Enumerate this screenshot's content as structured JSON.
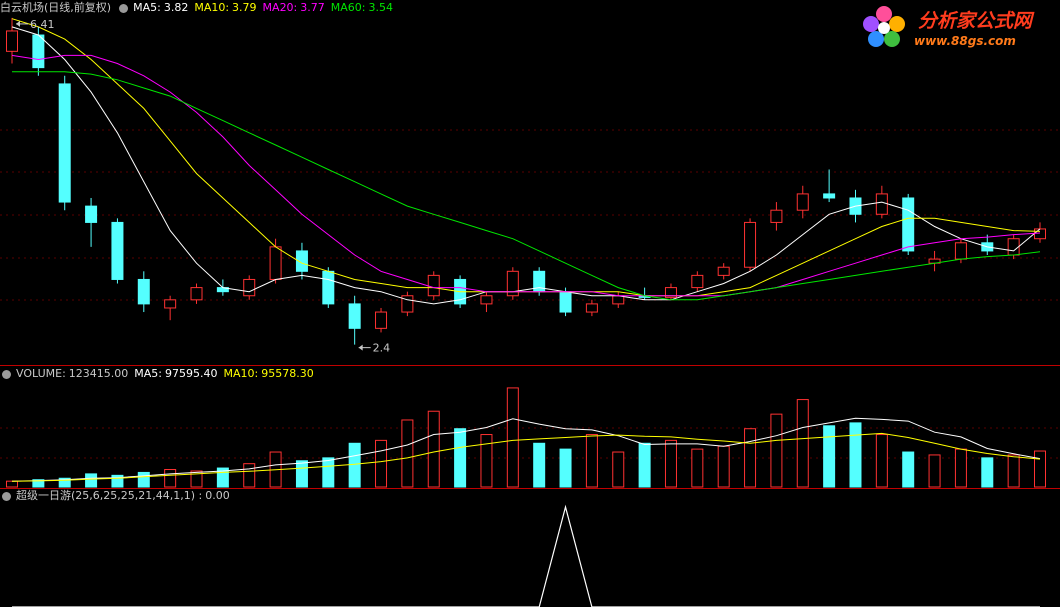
{
  "chart_data": [
    {
      "type": "candlestick",
      "title": "白云机场(日线,前复权)",
      "open": [
        6.0,
        6.2,
        5.6,
        4.1,
        3.9,
        3.2,
        2.85,
        2.95,
        3.1,
        3.0,
        3.2,
        3.55,
        3.3,
        2.9,
        2.6,
        2.8,
        3.0,
        3.2,
        2.9,
        3.0,
        3.3,
        3.05,
        2.8,
        2.9,
        3.0,
        2.98,
        3.1,
        3.25,
        3.35,
        3.9,
        4.05,
        4.25,
        4.2,
        4.0,
        4.2,
        3.4,
        3.45,
        3.65,
        3.5,
        3.7
      ],
      "high": [
        6.41,
        6.3,
        5.7,
        4.2,
        3.95,
        3.3,
        3.0,
        3.15,
        3.2,
        3.25,
        3.7,
        3.65,
        3.35,
        3.0,
        2.85,
        3.05,
        3.3,
        3.25,
        3.05,
        3.35,
        3.35,
        3.1,
        2.95,
        3.05,
        3.1,
        3.15,
        3.3,
        3.4,
        3.95,
        4.15,
        4.35,
        4.55,
        4.3,
        4.35,
        4.25,
        3.55,
        3.7,
        3.75,
        3.75,
        3.9
      ],
      "low": [
        5.85,
        5.7,
        4.05,
        3.6,
        3.15,
        2.8,
        2.7,
        2.9,
        3.0,
        2.95,
        3.15,
        3.2,
        2.85,
        2.4,
        2.55,
        2.75,
        2.95,
        2.85,
        2.8,
        2.95,
        3.0,
        2.75,
        2.75,
        2.85,
        2.95,
        2.95,
        3.05,
        3.2,
        3.3,
        3.8,
        3.95,
        4.15,
        3.9,
        3.95,
        3.5,
        3.3,
        3.4,
        3.5,
        3.45,
        3.65
      ],
      "close": [
        6.25,
        5.8,
        4.15,
        3.9,
        3.2,
        2.9,
        2.95,
        3.1,
        3.05,
        3.2,
        3.6,
        3.3,
        2.9,
        2.6,
        2.8,
        3.0,
        3.25,
        2.9,
        3.0,
        3.3,
        3.05,
        2.8,
        2.9,
        3.0,
        2.98,
        3.1,
        3.25,
        3.35,
        3.9,
        4.05,
        4.25,
        4.2,
        4.0,
        4.25,
        3.55,
        3.45,
        3.65,
        3.55,
        3.7,
        3.82
      ],
      "up_color": "#ff3232",
      "down_color": "#54ffff",
      "ylim": [
        2.15,
        6.63
      ],
      "high_label": 6.41,
      "low_label": 2.4,
      "series": [
        {
          "name": "MA5:",
          "color": "#ffffff",
          "readout": 3.82,
          "values": [
            6.3,
            6.2,
            5.9,
            5.5,
            5.0,
            4.4,
            3.8,
            3.4,
            3.1,
            3.05,
            3.2,
            3.25,
            3.2,
            3.1,
            3.05,
            2.95,
            2.9,
            2.95,
            3.05,
            3.05,
            3.1,
            3.05,
            3.0,
            3.0,
            2.95,
            2.95,
            3.05,
            3.15,
            3.3,
            3.5,
            3.75,
            4.0,
            4.1,
            4.15,
            4.05,
            3.85,
            3.7,
            3.6,
            3.55,
            3.82
          ]
        },
        {
          "name": "MA10:",
          "color": "#ffff00",
          "readout": 3.79,
          "values": [
            6.4,
            6.3,
            6.15,
            5.9,
            5.6,
            5.3,
            4.9,
            4.5,
            4.2,
            3.9,
            3.6,
            3.4,
            3.3,
            3.2,
            3.15,
            3.1,
            3.1,
            3.05,
            3.05,
            3.05,
            3.05,
            3.05,
            3.05,
            3.05,
            3.0,
            3.0,
            3.0,
            3.05,
            3.1,
            3.25,
            3.4,
            3.55,
            3.7,
            3.85,
            3.95,
            3.95,
            3.9,
            3.85,
            3.8,
            3.79
          ]
        },
        {
          "name": "MA20:",
          "color": "#ff00ff",
          "readout": 3.77,
          "values": [
            5.95,
            5.9,
            5.95,
            5.95,
            5.85,
            5.7,
            5.5,
            5.25,
            4.95,
            4.6,
            4.3,
            4.0,
            3.75,
            3.5,
            3.3,
            3.2,
            3.1,
            3.1,
            3.05,
            3.05,
            3.05,
            3.05,
            3.05,
            3.0,
            3.0,
            3.0,
            3.0,
            3.0,
            3.05,
            3.1,
            3.2,
            3.3,
            3.4,
            3.5,
            3.6,
            3.65,
            3.7,
            3.72,
            3.75,
            3.77
          ]
        },
        {
          "name": "MA60:",
          "color": "#00e600",
          "readout": 3.54,
          "values": [
            5.75,
            5.75,
            5.75,
            5.72,
            5.65,
            5.55,
            5.45,
            5.3,
            5.15,
            5.0,
            4.85,
            4.7,
            4.55,
            4.4,
            4.25,
            4.1,
            4.0,
            3.9,
            3.8,
            3.7,
            3.55,
            3.4,
            3.25,
            3.1,
            3.0,
            2.95,
            2.95,
            3.0,
            3.05,
            3.1,
            3.15,
            3.2,
            3.25,
            3.3,
            3.35,
            3.4,
            3.45,
            3.48,
            3.5,
            3.54
          ]
        }
      ]
    },
    {
      "type": "bar",
      "title": "VOLUME:",
      "readout": {
        "value": 123415,
        "label": "123415.00"
      },
      "values": [
        20000,
        25000,
        30000,
        45000,
        40000,
        50000,
        60000,
        55000,
        65000,
        80000,
        120000,
        90000,
        100000,
        150000,
        160000,
        230000,
        260000,
        200000,
        180000,
        340000,
        150000,
        130000,
        180000,
        120000,
        150000,
        160000,
        130000,
        140000,
        200000,
        250000,
        300000,
        210000,
        220000,
        180000,
        120000,
        110000,
        130000,
        100000,
        110000,
        123415
      ],
      "ylim": [
        0,
        350000
      ],
      "series": [
        {
          "name": "MA5:",
          "color": "#ffffff",
          "readout": {
            "value": 97595.4,
            "label": "97595.40"
          },
          "values": [
            20000,
            22000,
            25000,
            30000,
            32000,
            38000,
            45000,
            50000,
            55000,
            62000,
            76000,
            82000,
            91000,
            107000,
            124000,
            144000,
            180000,
            188000,
            204000,
            234000,
            216000,
            200000,
            196000,
            176000,
            146000,
            148000,
            148000,
            140000,
            156000,
            176000,
            204000,
            220000,
            236000,
            232000,
            226000,
            188000,
            172000,
            132000,
            114000,
            97595.4
          ]
        },
        {
          "name": "MA10:",
          "color": "#ffff00",
          "readout": {
            "value": 95578.3,
            "label": "95578.30"
          },
          "values": [
            20000,
            21000,
            23000,
            27000,
            30000,
            35000,
            40000,
            45000,
            50000,
            54000,
            59000,
            65000,
            71000,
            78000,
            87000,
            100000,
            120000,
            136000,
            148000,
            160000,
            165000,
            170000,
            175000,
            178000,
            174000,
            172000,
            164000,
            158000,
            150000,
            160000,
            166000,
            172000,
            178000,
            184000,
            170000,
            150000,
            130000,
            115000,
            104000,
            95578.3
          ]
        }
      ]
    },
    {
      "type": "line",
      "title": "超级一日游(25,6,25,25,21,44,1,1) :",
      "readout": {
        "value": 0,
        "label": "0.00"
      },
      "color": "#ffffff",
      "values": [
        0,
        0,
        0,
        0,
        0,
        0,
        0,
        0,
        0,
        0,
        0,
        0,
        0,
        0,
        0,
        0,
        0,
        0,
        0,
        0,
        0,
        1,
        0,
        0,
        0,
        0,
        0,
        0,
        0,
        0,
        0,
        0,
        0,
        0,
        0,
        0,
        0,
        0,
        0,
        0
      ],
      "ylim": [
        0,
        1.1
      ]
    }
  ],
  "watermark": {
    "title": "分析家公式网",
    "url": "www.88gs.com"
  }
}
